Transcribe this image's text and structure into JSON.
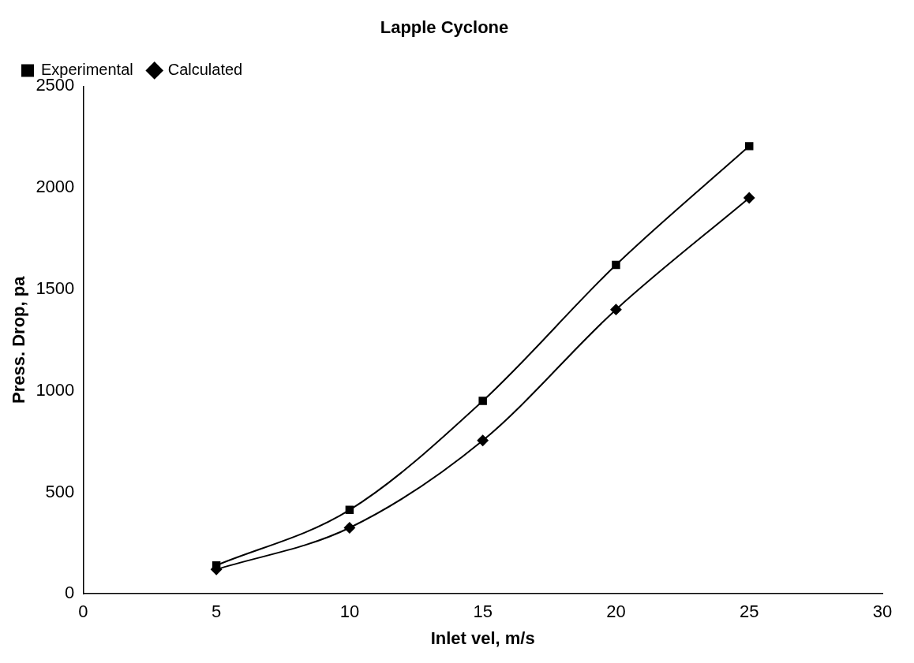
{
  "chart_data": {
    "type": "line",
    "title": "Lapple Cyclone",
    "xlabel": "Inlet vel, m/s",
    "ylabel": "Press. Drop, pa",
    "x": [
      5,
      10,
      15,
      20,
      25
    ],
    "series": [
      {
        "name": "Calculated",
        "color": "#000000",
        "marker": "diamond",
        "values": [
          120,
          325,
          755,
          1400,
          1950
        ]
      },
      {
        "name": "Experimental",
        "color": "#000000",
        "marker": "square",
        "values": [
          140,
          413,
          950,
          1620,
          2205
        ]
      }
    ],
    "xlim": [
      0,
      30
    ],
    "xticks": [
      0,
      5,
      10,
      15,
      20,
      25,
      30
    ],
    "ylim": [
      0,
      2500
    ],
    "yticks": [
      0,
      500,
      1000,
      1500,
      2000,
      2500
    ],
    "grid": false,
    "legend": "top left",
    "line_style": "solid"
  }
}
